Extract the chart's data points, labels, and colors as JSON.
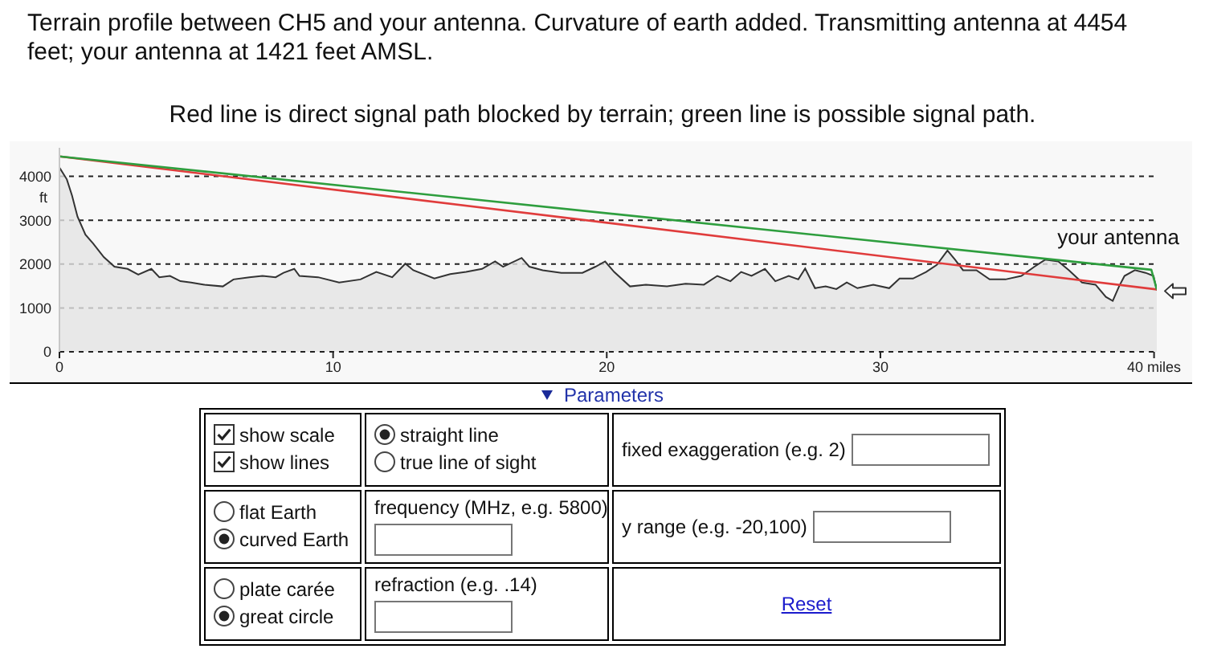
{
  "chart_data": [
    {
      "type": "area",
      "title": "Terrain profile between CH5 and your antenna. Curvature of earth added. Transmitting antenna at 4454 feet; your antenna at 1421 feet AMSL.",
      "subtitle": "Red line is direct signal path blocked by terrain; green line is possible signal path.",
      "ylabel": "ft",
      "xlim": [
        0,
        40.1
      ],
      "xticks": [
        0,
        10,
        20,
        30,
        {
          "value": 40,
          "label": "40 miles"
        }
      ],
      "ylim": [
        0,
        4650
      ],
      "yticks": [
        0,
        1000,
        2000,
        3000,
        4000
      ],
      "grid": "y",
      "annotations": [
        {
          "text": "your antenna",
          "x": 40.1,
          "y": 1421
        }
      ],
      "series": [
        {
          "type": "area",
          "color": "#e4e4e4",
          "x": [
            0,
            0.27,
            0.46,
            0.66,
            0.95,
            1.23,
            1.62,
            2.01,
            2.49,
            2.88,
            3.36,
            3.65,
            4.04,
            4.42,
            4.81,
            5.29,
            5.97,
            6.36,
            6.94,
            7.42,
            7.9,
            8.19,
            8.58,
            8.77,
            9.45,
            10.22,
            11.0,
            11.58,
            12.16,
            12.64,
            12.93,
            13.7,
            14.28,
            14.86,
            15.44,
            15.92,
            16.21,
            16.89,
            17.17,
            17.66,
            18.34,
            19.11,
            19.59,
            19.94,
            20.27,
            20.85,
            21.43,
            22.2,
            22.88,
            23.55,
            24.04,
            24.52,
            24.91,
            25.29,
            25.78,
            26.16,
            26.65,
            27.0,
            27.25,
            27.61,
            28.0,
            28.39,
            28.77,
            29.16,
            29.74,
            30.32,
            30.7,
            31.19,
            31.67,
            32.06,
            32.45,
            32.73,
            33.02,
            33.51,
            33.99,
            34.57,
            35.15,
            35.63,
            36.02,
            36.5,
            36.89,
            37.37,
            37.86,
            38.24,
            38.49,
            38.72,
            38.92,
            39.3,
            39.69,
            39.98,
            40.1
          ],
          "values": [
            4200,
            3930,
            3560,
            3080,
            2670,
            2470,
            2160,
            1940,
            1890,
            1760,
            1890,
            1700,
            1730,
            1610,
            1580,
            1530,
            1490,
            1650,
            1700,
            1730,
            1700,
            1800,
            1890,
            1730,
            1700,
            1580,
            1650,
            1820,
            1700,
            2010,
            1860,
            1670,
            1770,
            1820,
            1890,
            2060,
            1940,
            2140,
            1940,
            1860,
            1800,
            1800,
            1940,
            2060,
            1820,
            1490,
            1530,
            1490,
            1550,
            1530,
            1730,
            1610,
            1820,
            1730,
            1890,
            1610,
            1730,
            1650,
            1900,
            1450,
            1490,
            1430,
            1580,
            1450,
            1530,
            1450,
            1670,
            1670,
            1820,
            1980,
            2310,
            2100,
            1860,
            1860,
            1650,
            1650,
            1730,
            1940,
            2100,
            2060,
            1860,
            1580,
            1530,
            1250,
            1160,
            1490,
            1730,
            1860,
            1800,
            1730,
            1400
          ]
        },
        {
          "type": "line",
          "color": "#e03c3c",
          "x": [
            0,
            40.1
          ],
          "values": [
            4454,
            1421
          ]
        },
        {
          "type": "line",
          "color": "#2e9e3e",
          "x": [
            0,
            39.9,
            40.1
          ],
          "values": [
            4454,
            1870,
            1421
          ]
        }
      ]
    },
    {
      "type": "other",
      "title": "Parameters",
      "annotations": [
        "show scale",
        "show lines",
        "straight line",
        "true line of sight",
        "fixed exaggeration (e.g. 2)",
        "flat Earth",
        "curved Earth",
        "frequency (MHz, e.g. 5800)",
        "y range (e.g. -20,100)",
        "plate carée",
        "great circle",
        "refraction (e.g. .14)",
        "Reset"
      ]
    }
  ]
}
